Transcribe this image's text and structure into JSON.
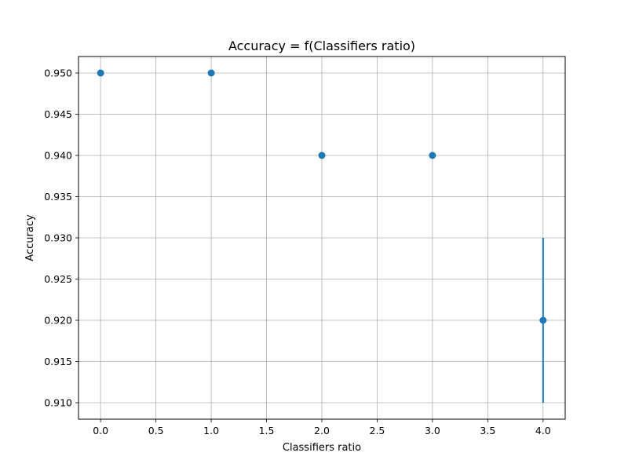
{
  "chart_data": {
    "type": "scatter",
    "title": "Accuracy = f(Classifiers ratio)",
    "xlabel": "Classifiers ratio",
    "ylabel": "Accuracy",
    "xlim": [
      -0.2,
      4.2
    ],
    "ylim": [
      0.908,
      0.952
    ],
    "xticks": [
      0.0,
      0.5,
      1.0,
      1.5,
      2.0,
      2.5,
      3.0,
      3.5,
      4.0
    ],
    "xtick_labels": [
      "0.0",
      "0.5",
      "1.0",
      "1.5",
      "2.0",
      "2.5",
      "3.0",
      "3.5",
      "4.0"
    ],
    "yticks": [
      0.91,
      0.915,
      0.92,
      0.925,
      0.93,
      0.935,
      0.94,
      0.945,
      0.95
    ],
    "ytick_labels": [
      "0.910",
      "0.915",
      "0.920",
      "0.925",
      "0.930",
      "0.935",
      "0.940",
      "0.945",
      "0.950"
    ],
    "grid": true,
    "color": "#1f77b4",
    "series": [
      {
        "x": [
          0,
          1,
          2,
          3,
          4
        ],
        "y": [
          0.95,
          0.95,
          0.94,
          0.94,
          0.92
        ],
        "yerr": [
          0,
          0,
          0,
          0,
          0.01
        ]
      }
    ]
  }
}
